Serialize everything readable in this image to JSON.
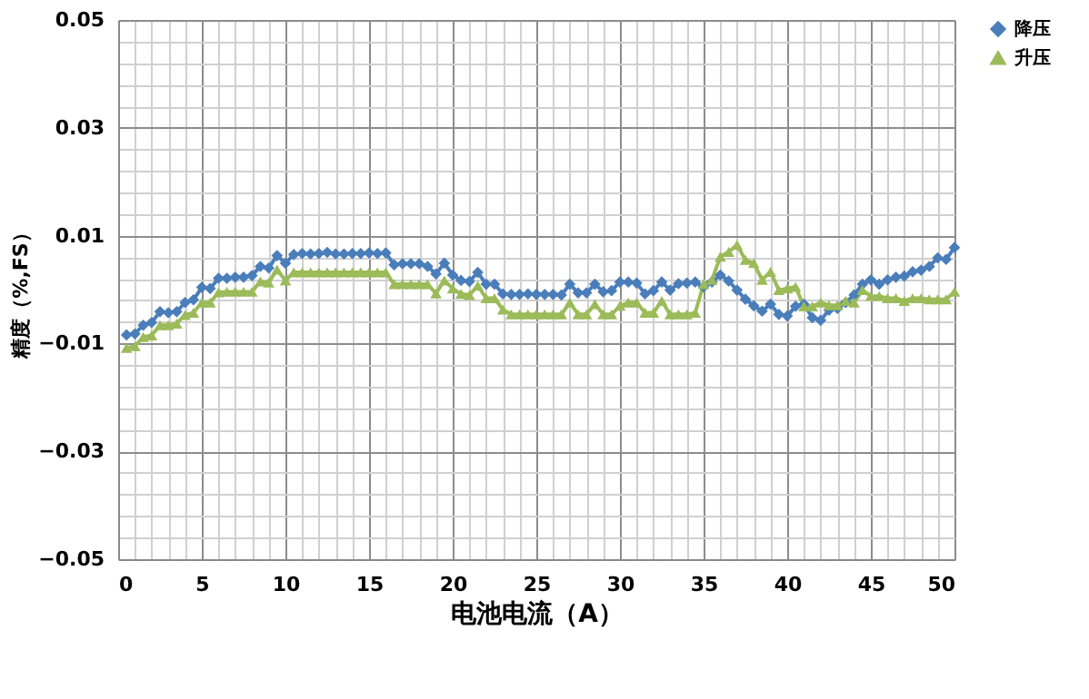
{
  "chart_data": {
    "type": "line",
    "xlabel": "电池电流（A）",
    "ylabel": "精度（%,FS）",
    "x": [
      0.5,
      1,
      1.5,
      2,
      2.5,
      3,
      3.5,
      4,
      4.5,
      5,
      5.5,
      6,
      6.5,
      7,
      7.5,
      8,
      8.5,
      9,
      9.5,
      10,
      10.5,
      11,
      11.5,
      12,
      12.5,
      13,
      13.5,
      14,
      14.5,
      15,
      15.5,
      16,
      16.5,
      17,
      17.5,
      18,
      18.5,
      19,
      19.5,
      20,
      20.5,
      21,
      21.5,
      22,
      22.5,
      23,
      23.5,
      24,
      24.5,
      25,
      25.5,
      26,
      26.5,
      27,
      27.5,
      28,
      28.5,
      29,
      29.5,
      30,
      30.5,
      31,
      31.5,
      32,
      32.5,
      33,
      33.5,
      34,
      34.5,
      35,
      35.5,
      36,
      36.5,
      37,
      37.5,
      38,
      38.5,
      39,
      39.5,
      40,
      40.5,
      41,
      41.5,
      42,
      42.5,
      43,
      43.5,
      44,
      44.5,
      45,
      45.5,
      46,
      46.5,
      47,
      47.5,
      48,
      48.5,
      49,
      49.5,
      50
    ],
    "series": [
      {
        "name": "降压",
        "color": "#4a7ebb",
        "marker": "diamond",
        "values": [
          -0.0084,
          -0.0082,
          -0.0066,
          -0.0061,
          -0.0041,
          -0.0043,
          -0.0041,
          -0.0024,
          -0.0019,
          0.0004,
          0.0002,
          0.0021,
          0.0021,
          0.0023,
          0.0023,
          0.0026,
          0.0043,
          0.004,
          0.0063,
          0.0049,
          0.0065,
          0.0067,
          0.0066,
          0.0067,
          0.0069,
          0.0066,
          0.0066,
          0.0067,
          0.0067,
          0.0068,
          0.0067,
          0.0068,
          0.0046,
          0.0048,
          0.0048,
          0.0048,
          0.0043,
          0.0029,
          0.0049,
          0.0027,
          0.0017,
          0.0015,
          0.0032,
          0.001,
          0.001,
          -0.0008,
          -0.0009,
          -0.0009,
          -0.0008,
          -0.0009,
          -0.0009,
          -0.0009,
          -0.001,
          0.001,
          -0.0006,
          -0.0006,
          0.001,
          -0.0004,
          -0.0002,
          0.0014,
          0.0014,
          0.0012,
          -0.0008,
          -0.0002,
          0.0014,
          -0.0001,
          0.0011,
          0.0012,
          0.0014,
          0.0005,
          0.0014,
          0.0027,
          0.0016,
          -0.0001,
          -0.0018,
          -0.003,
          -0.004,
          -0.0027,
          -0.0046,
          -0.0049,
          -0.0031,
          -0.0027,
          -0.0052,
          -0.0057,
          -0.0038,
          -0.0035,
          -0.0024,
          -0.001,
          0.001,
          0.0018,
          0.001,
          0.0018,
          0.0023,
          0.0025,
          0.0033,
          0.0036,
          0.0043,
          0.0059,
          0.0056,
          0.0078
        ]
      },
      {
        "name": "升压",
        "color": "#9bbb59",
        "marker": "triangle",
        "values": [
          -0.0108,
          -0.0105,
          -0.0088,
          -0.0085,
          -0.0066,
          -0.0066,
          -0.0063,
          -0.0047,
          -0.0043,
          -0.0024,
          -0.0024,
          -0.0005,
          -0.0004,
          -0.0004,
          -0.0004,
          -0.0004,
          0.0015,
          0.0013,
          0.0037,
          0.0017,
          0.0032,
          0.0032,
          0.0032,
          0.0032,
          0.0032,
          0.0032,
          0.0032,
          0.0032,
          0.0032,
          0.0032,
          0.0032,
          0.0032,
          0.001,
          0.001,
          0.001,
          0.001,
          0.001,
          -0.0007,
          0.0017,
          0.0002,
          -0.0008,
          -0.001,
          0.0007,
          -0.0016,
          -0.0016,
          -0.0037,
          -0.0046,
          -0.0046,
          -0.0046,
          -0.0046,
          -0.0046,
          -0.0046,
          -0.0046,
          -0.0024,
          -0.0046,
          -0.0046,
          -0.0027,
          -0.0046,
          -0.0046,
          -0.003,
          -0.0024,
          -0.0024,
          -0.0043,
          -0.0043,
          -0.0021,
          -0.0046,
          -0.0046,
          -0.0046,
          -0.0043,
          0.001,
          0.0018,
          0.0061,
          0.007,
          0.0083,
          0.0055,
          0.0049,
          0.0018,
          0.0033,
          -0.0001,
          0.0002,
          0.0005,
          -0.0031,
          -0.0031,
          -0.0024,
          -0.0029,
          -0.0029,
          -0.0021,
          -0.0024,
          -0.0001,
          -0.0012,
          -0.0012,
          -0.0016,
          -0.0016,
          -0.0021,
          -0.0016,
          -0.0016,
          -0.0018,
          -0.0018,
          -0.0018,
          -0.0004
        ]
      }
    ],
    "xlim": [
      0,
      50
    ],
    "xticks": [
      0,
      5,
      10,
      15,
      20,
      25,
      30,
      35,
      40,
      45,
      50
    ],
    "ylim": [
      -0.05,
      0.05
    ],
    "yticks": [
      -0.05,
      -0.03,
      -0.01,
      0.01,
      0.03,
      0.05
    ],
    "grid": true,
    "legend": "top right",
    "line_style": "solid"
  }
}
